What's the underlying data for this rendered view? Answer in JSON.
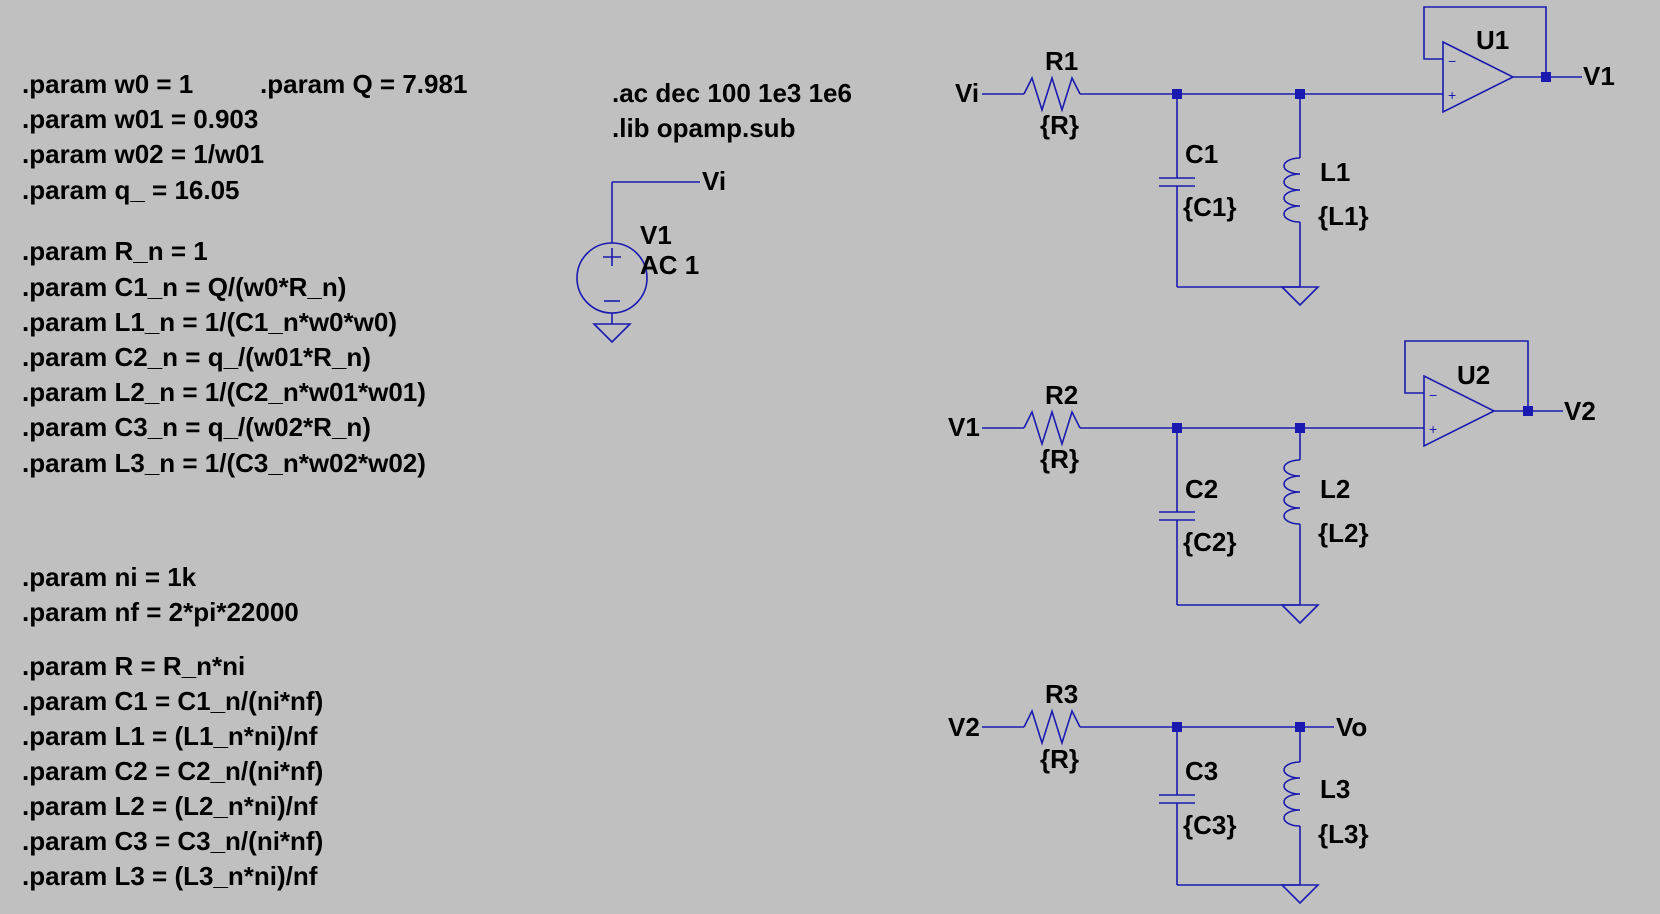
{
  "colors": {
    "background": "#c0c0c0",
    "wire": "#1a1ab0",
    "text": "#000000"
  },
  "params_block1": [
    ".param w01 = 0.903",
    ".param w02 = 1/w01",
    ".param q_ = 16.05"
  ],
  "param_w0": ".param w0 = 1",
  "param_Q": ".param Q = 7.981",
  "params_block2": [
    ".param R_n = 1",
    ".param C1_n = Q/(w0*R_n)",
    ".param L1_n = 1/(C1_n*w0*w0)",
    ".param C2_n = q_/(w01*R_n)",
    ".param L2_n = 1/(C2_n*w01*w01)",
    ".param C3_n = q_/(w02*R_n)",
    ".param L3_n = 1/(C3_n*w02*w02)"
  ],
  "params_block3": [
    ".param ni = 1k",
    ".param nf = 2*pi*22000"
  ],
  "params_block4": [
    ".param R = R_n*ni",
    ".param C1 = C1_n/(ni*nf)",
    ".param L1 = (L1_n*ni)/nf",
    ".param C2 = C2_n/(ni*nf)",
    ".param L2 = (L2_n*ni)/nf",
    ".param C3 = C3_n/(ni*nf)",
    ".param L3 = (L3_n*ni)/nf"
  ],
  "directives": [
    ".ac dec 100 1e3 1e6",
    ".lib opamp.sub"
  ],
  "source": {
    "name": "V1",
    "value": "AC 1",
    "net": "Vi"
  },
  "stages": [
    {
      "in_net": "Vi",
      "out_net": "V1",
      "resistor": {
        "name": "R1",
        "value": "{R}"
      },
      "capacitor": {
        "name": "C1",
        "value": "{C1}"
      },
      "inductor": {
        "name": "L1",
        "value": "{L1}"
      },
      "opamp": "U1"
    },
    {
      "in_net": "V1",
      "out_net": "V2",
      "resistor": {
        "name": "R2",
        "value": "{R}"
      },
      "capacitor": {
        "name": "C2",
        "value": "{C2}"
      },
      "inductor": {
        "name": "L2",
        "value": "{L2}"
      },
      "opamp": "U2"
    },
    {
      "in_net": "V2",
      "out_net": "Vo",
      "resistor": {
        "name": "R3",
        "value": "{R}"
      },
      "capacitor": {
        "name": "C3",
        "value": "{C3}"
      },
      "inductor": {
        "name": "L3",
        "value": "{L3}"
      }
    }
  ]
}
